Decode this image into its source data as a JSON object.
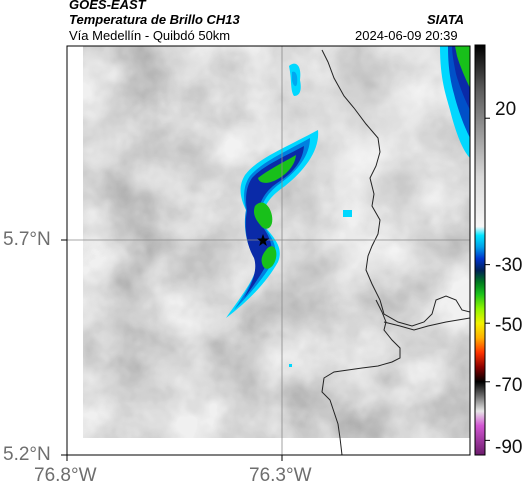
{
  "header": {
    "satellite": "GOES-EAST",
    "product": "Temperatura de Brillo CH13",
    "agency": "SIATA",
    "region": "Vía Medellín - Quibdó 50km",
    "datetime": "2024-06-09 20:39"
  },
  "map": {
    "lat_ticks": [
      "5.7°N",
      "5.2°N"
    ],
    "lon_ticks": [
      "76.8°W",
      "76.3°W"
    ],
    "marker": "star",
    "border_color": "#222222"
  },
  "colorbar": {
    "labels": [
      "20",
      "-30",
      "-50",
      "-70",
      "-90"
    ],
    "range": [
      -95,
      45
    ],
    "stops": [
      {
        "value": 45,
        "color": "#000000"
      },
      {
        "value": 30,
        "color": "#5a5a5a"
      },
      {
        "value": 15,
        "color": "#9a9a9a"
      },
      {
        "value": 0,
        "color": "#d8d8d8"
      },
      {
        "value": -17,
        "color": "#f7f7f7"
      },
      {
        "value": -20,
        "color": "#00e5ff"
      },
      {
        "value": -24,
        "color": "#00a0e8"
      },
      {
        "value": -28,
        "color": "#0033cc"
      },
      {
        "value": -32,
        "color": "#002255"
      },
      {
        "value": -36,
        "color": "#007a20"
      },
      {
        "value": -40,
        "color": "#19c21b"
      },
      {
        "value": -45,
        "color": "#8ef500"
      },
      {
        "value": -50,
        "color": "#f2f200"
      },
      {
        "value": -55,
        "color": "#ffb000"
      },
      {
        "value": -60,
        "color": "#ff3300"
      },
      {
        "value": -65,
        "color": "#8b0000"
      },
      {
        "value": -70,
        "color": "#000000"
      },
      {
        "value": -75,
        "color": "#707070"
      },
      {
        "value": -80,
        "color": "#e6e6e6"
      },
      {
        "value": -85,
        "color": "#d255d2"
      },
      {
        "value": -95,
        "color": "#6b1b6b"
      }
    ]
  }
}
